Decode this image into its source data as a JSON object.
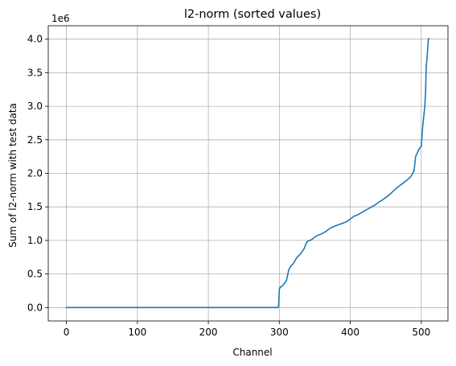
{
  "chart_data": {
    "type": "line",
    "title": "l2-norm (sorted values)",
    "xlabel": "Channel",
    "ylabel": "Sum of l2-norm with test data",
    "y_offset_label": "1e6",
    "xlim": [
      -25.6,
      537.6
    ],
    "ylim": [
      -200000,
      4200000
    ],
    "x_ticks": [
      0,
      100,
      200,
      300,
      400,
      500
    ],
    "y_ticks": [
      0,
      500000,
      1000000,
      1500000,
      2000000,
      2500000,
      3000000,
      3500000,
      4000000
    ],
    "y_tick_labels": [
      "0.0",
      "0.5",
      "1.0",
      "1.5",
      "2.0",
      "2.5",
      "3.0",
      "3.5",
      "4.0"
    ],
    "grid": true,
    "line_color": "#1f77b4",
    "series": [
      {
        "x": [
          0,
          100,
          200,
          298,
          299,
          300,
          301,
          305,
          310,
          313,
          315,
          320,
          325,
          330,
          335,
          338,
          340,
          345,
          350,
          355,
          360,
          365,
          370,
          375,
          380,
          385,
          390,
          395,
          400,
          405,
          410,
          415,
          420,
          425,
          430,
          435,
          440,
          445,
          450,
          455,
          460,
          465,
          470,
          475,
          480,
          485,
          488,
          490,
          492,
          495,
          498,
          500,
          502,
          503,
          504,
          505,
          506,
          507,
          508,
          509,
          510,
          511
        ],
        "y": [
          0,
          0,
          0,
          0,
          20000,
          270000,
          300000,
          330000,
          400000,
          550000,
          600000,
          660000,
          750000,
          800000,
          880000,
          960000,
          990000,
          1010000,
          1050000,
          1080000,
          1100000,
          1130000,
          1170000,
          1200000,
          1220000,
          1240000,
          1260000,
          1280000,
          1320000,
          1360000,
          1380000,
          1410000,
          1440000,
          1470000,
          1500000,
          1530000,
          1570000,
          1600000,
          1640000,
          1680000,
          1730000,
          1780000,
          1820000,
          1860000,
          1900000,
          1950000,
          2000000,
          2050000,
          2250000,
          2320000,
          2380000,
          2400000,
          2700000,
          2800000,
          2900000,
          3000000,
          3200000,
          3600000,
          3700000,
          3850000,
          4000000,
          4010000
        ]
      }
    ]
  }
}
